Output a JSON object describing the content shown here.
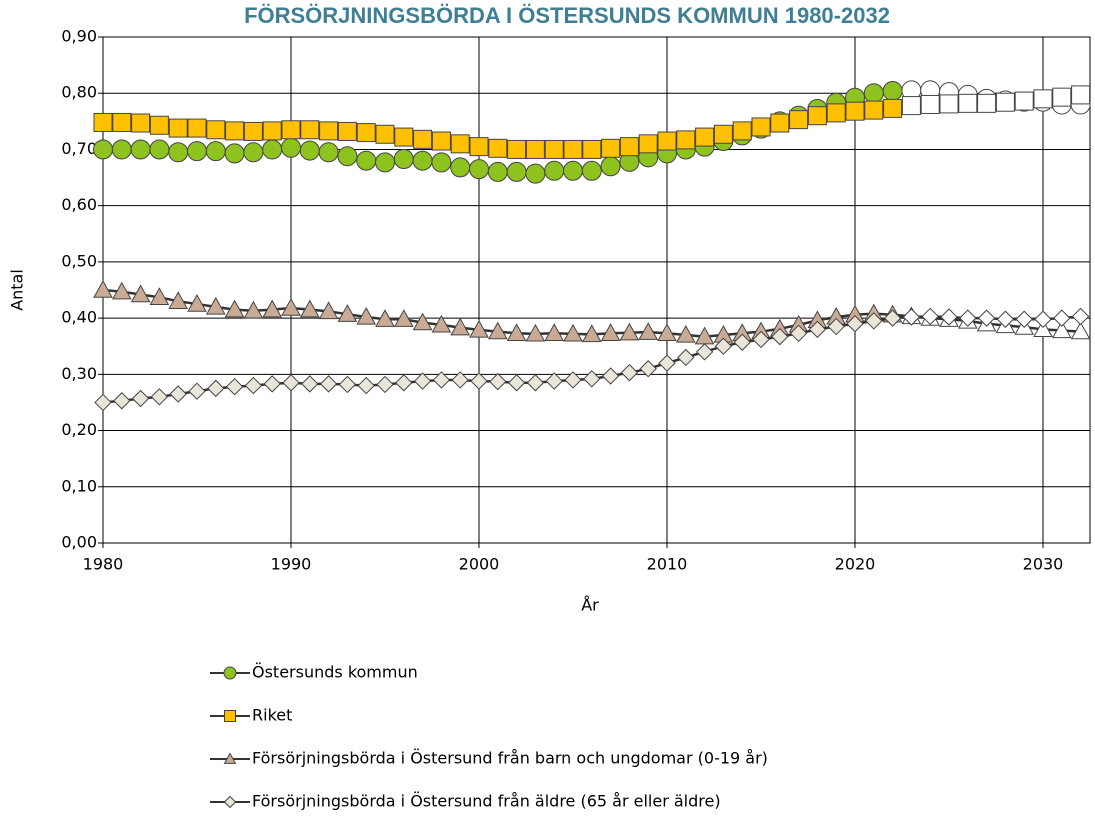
{
  "chart_data": {
    "type": "line",
    "title": "FÖRSÖRJNINGSBÖRDA I ÖSTERSUNDS KOMMUN 1980-2032",
    "x_label": "År",
    "y_label": "Antal",
    "x": [
      1980,
      1981,
      1982,
      1983,
      1984,
      1985,
      1986,
      1987,
      1988,
      1989,
      1990,
      1991,
      1992,
      1993,
      1994,
      1995,
      1996,
      1997,
      1998,
      1999,
      2000,
      2001,
      2002,
      2003,
      2004,
      2005,
      2006,
      2007,
      2008,
      2009,
      2010,
      2011,
      2012,
      2013,
      2014,
      2015,
      2016,
      2017,
      2018,
      2019,
      2020,
      2021,
      2022,
      2023,
      2024,
      2025,
      2026,
      2027,
      2028,
      2029,
      2030,
      2031,
      2032
    ],
    "xlim": [
      1980,
      2032.5
    ],
    "xticks": [
      1980,
      1990,
      2000,
      2010,
      2020,
      2030
    ],
    "ylim": [
      0,
      0.9
    ],
    "yticks": [
      {
        "value": 0,
        "label": "0,00"
      },
      {
        "value": 0.1,
        "label": "0,10"
      },
      {
        "value": 0.2,
        "label": "0,20"
      },
      {
        "value": 0.3,
        "label": "0,30"
      },
      {
        "value": 0.4,
        "label": "0,40"
      },
      {
        "value": 0.5,
        "label": "0,50"
      },
      {
        "value": 0.6,
        "label": "0,60"
      },
      {
        "value": 0.7,
        "label": "0,70"
      },
      {
        "value": 0.8,
        "label": "0,80"
      },
      {
        "value": 0.9,
        "label": "0,90"
      }
    ],
    "grid": true,
    "legend": "bottom",
    "forecast_from": 2023,
    "forecast_color": "#ffffff",
    "series": [
      {
        "name": "Östersunds kommun",
        "marker": "circle",
        "color": "#8dc21f",
        "values": [
          0.7,
          0.7,
          0.7,
          0.7,
          0.695,
          0.697,
          0.697,
          0.693,
          0.695,
          0.7,
          0.703,
          0.698,
          0.695,
          0.688,
          0.68,
          0.677,
          0.683,
          0.68,
          0.677,
          0.668,
          0.665,
          0.66,
          0.66,
          0.657,
          0.662,
          0.662,
          0.662,
          0.67,
          0.678,
          0.686,
          0.693,
          0.7,
          0.705,
          0.715,
          0.725,
          0.737,
          0.75,
          0.76,
          0.772,
          0.783,
          0.792,
          0.8,
          0.804,
          0.805,
          0.805,
          0.802,
          0.797,
          0.79,
          0.787,
          0.785,
          0.785,
          0.78,
          0.78
        ]
      },
      {
        "name": "Riket",
        "marker": "square",
        "color": "#ffc000",
        "values": [
          0.748,
          0.748,
          0.747,
          0.743,
          0.738,
          0.738,
          0.735,
          0.733,
          0.732,
          0.733,
          0.735,
          0.735,
          0.733,
          0.732,
          0.73,
          0.727,
          0.722,
          0.718,
          0.715,
          0.71,
          0.705,
          0.702,
          0.7,
          0.7,
          0.7,
          0.7,
          0.7,
          0.702,
          0.705,
          0.71,
          0.715,
          0.717,
          0.722,
          0.727,
          0.733,
          0.74,
          0.747,
          0.753,
          0.76,
          0.765,
          0.768,
          0.77,
          0.773,
          0.778,
          0.78,
          0.781,
          0.782,
          0.782,
          0.784,
          0.786,
          0.79,
          0.793,
          0.797
        ]
      },
      {
        "name": "Försörjningsbörda i Östersund från barn och ungdomar (0-19 år)",
        "marker": "triangle",
        "color": "#c9ab95",
        "values": [
          0.45,
          0.447,
          0.442,
          0.437,
          0.43,
          0.425,
          0.42,
          0.415,
          0.413,
          0.415,
          0.418,
          0.415,
          0.412,
          0.407,
          0.402,
          0.398,
          0.398,
          0.392,
          0.388,
          0.383,
          0.379,
          0.376,
          0.373,
          0.372,
          0.373,
          0.372,
          0.371,
          0.373,
          0.374,
          0.375,
          0.373,
          0.37,
          0.367,
          0.37,
          0.373,
          0.376,
          0.381,
          0.388,
          0.396,
          0.402,
          0.406,
          0.408,
          0.406,
          0.403,
          0.4,
          0.398,
          0.395,
          0.39,
          0.387,
          0.384,
          0.38,
          0.378,
          0.376
        ]
      },
      {
        "name": "Försörjningsbörda i Östersund från äldre (65 år eller äldre)",
        "marker": "diamond",
        "color": "#e9e5d9",
        "values": [
          0.25,
          0.253,
          0.257,
          0.26,
          0.265,
          0.27,
          0.275,
          0.278,
          0.28,
          0.283,
          0.285,
          0.283,
          0.283,
          0.282,
          0.28,
          0.282,
          0.285,
          0.288,
          0.29,
          0.29,
          0.288,
          0.287,
          0.285,
          0.285,
          0.288,
          0.29,
          0.292,
          0.297,
          0.303,
          0.31,
          0.32,
          0.33,
          0.34,
          0.35,
          0.357,
          0.362,
          0.367,
          0.373,
          0.38,
          0.385,
          0.39,
          0.395,
          0.4,
          0.402,
          0.403,
          0.402,
          0.4,
          0.4,
          0.398,
          0.398,
          0.398,
          0.4,
          0.403
        ]
      }
    ]
  }
}
